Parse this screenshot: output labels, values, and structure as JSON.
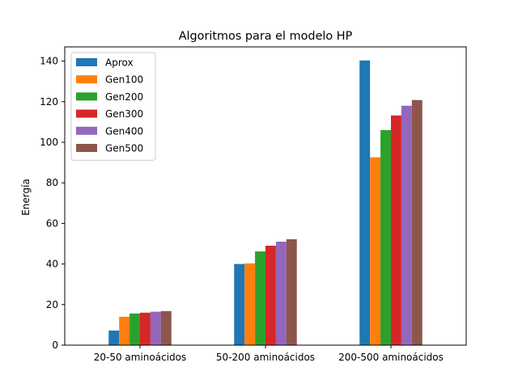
{
  "chart_data": {
    "type": "bar",
    "title": "Algoritmos para el modelo HP",
    "xlabel": "",
    "ylabel": "Energía",
    "categories": [
      "20-50 aminoácidos",
      "50-200 aminoácidos",
      "200-500 aminoácidos"
    ],
    "ylim": [
      0,
      147
    ],
    "yticks": [
      0,
      20,
      40,
      60,
      80,
      100,
      120,
      140
    ],
    "grid": false,
    "legend_position": "top-left",
    "series": [
      {
        "name": "Aprox",
        "color": "#1f77b4",
        "values": [
          7.2,
          40.0,
          140.3
        ]
      },
      {
        "name": "Gen100",
        "color": "#ff7f0e",
        "values": [
          14.0,
          40.3,
          92.6
        ]
      },
      {
        "name": "Gen200",
        "color": "#2ca02c",
        "values": [
          15.6,
          46.2,
          106.0
        ]
      },
      {
        "name": "Gen300",
        "color": "#d62728",
        "values": [
          16.0,
          49.0,
          113.2
        ]
      },
      {
        "name": "Gen400",
        "color": "#9467bd",
        "values": [
          16.5,
          51.0,
          118.0
        ]
      },
      {
        "name": "Gen500",
        "color": "#8c564b",
        "values": [
          16.8,
          52.2,
          120.8
        ]
      }
    ]
  }
}
